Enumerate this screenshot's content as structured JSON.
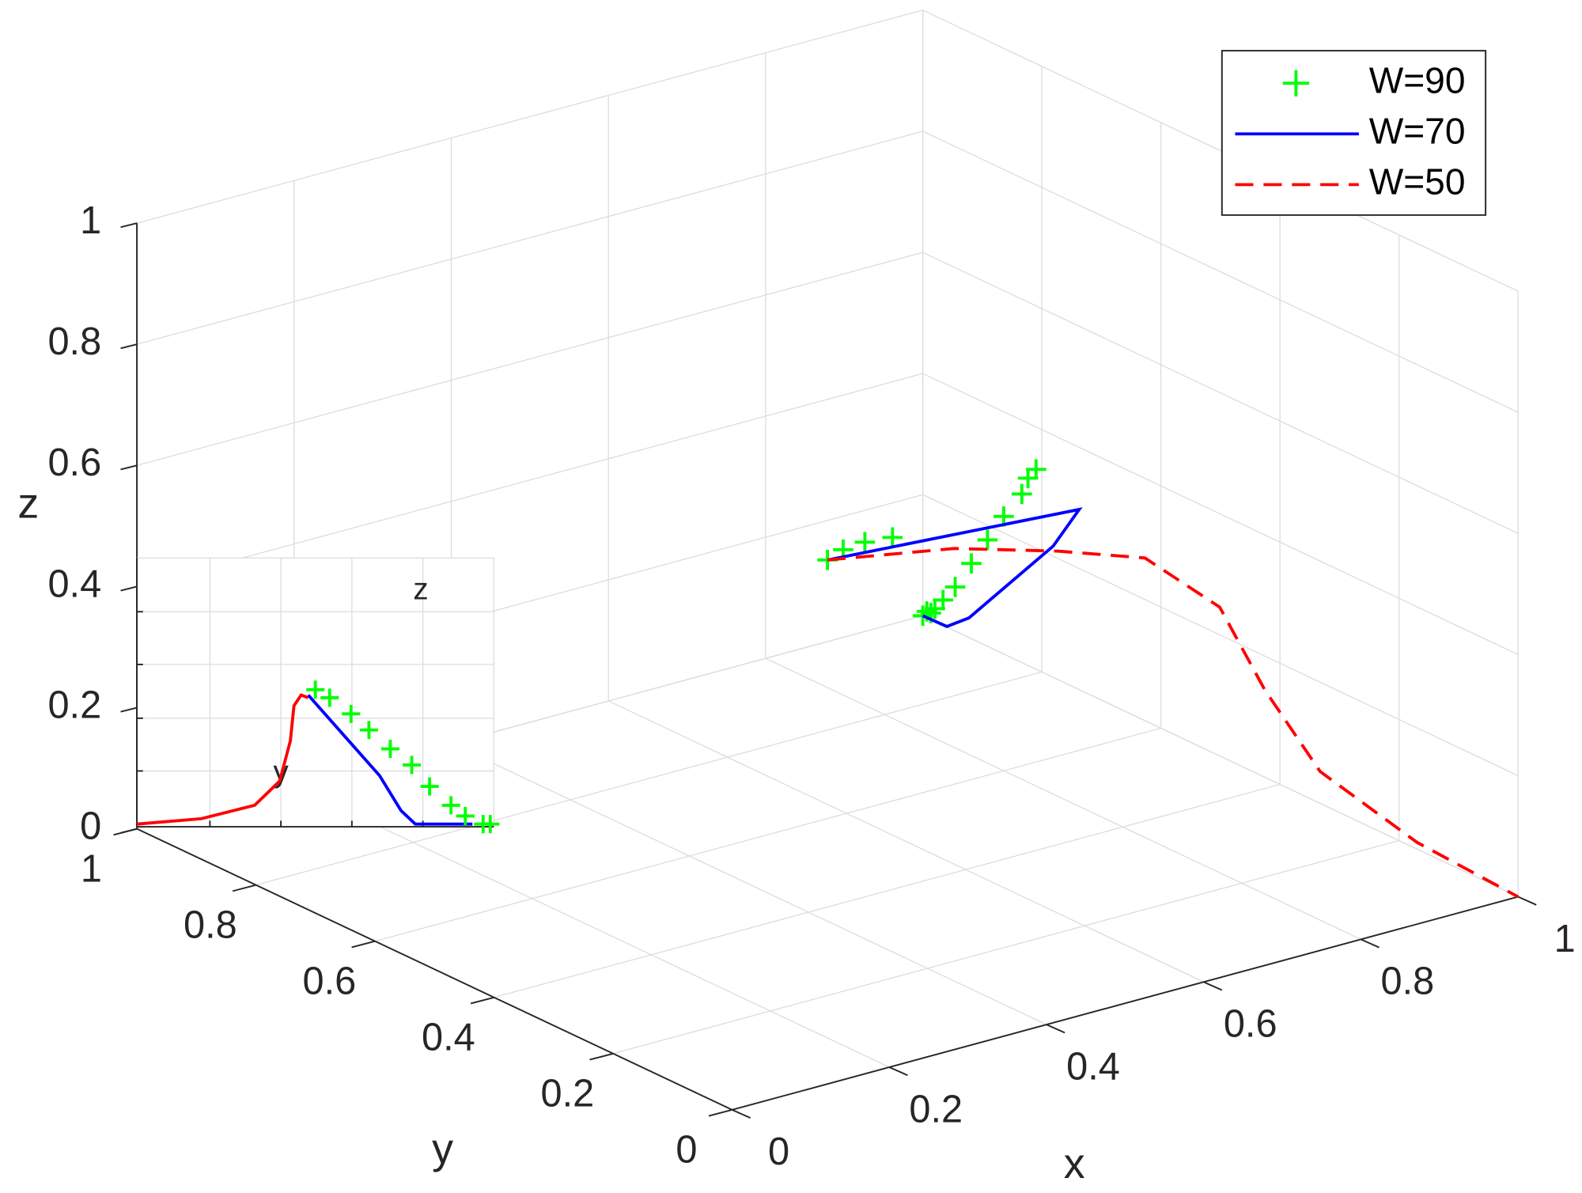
{
  "chart_data": [
    {
      "type": "line3d",
      "xlabel": "x",
      "ylabel": "y",
      "zlabel": "z",
      "xlim": [
        0,
        1
      ],
      "ylim": [
        0,
        1
      ],
      "zlim": [
        0,
        1
      ],
      "xticks": [
        0,
        0.2,
        0.4,
        0.6,
        0.8,
        1
      ],
      "yticks": [
        0,
        0.2,
        0.4,
        0.6,
        0.8,
        1
      ],
      "zticks": [
        0,
        0.2,
        0.4,
        0.6,
        0.8,
        1
      ],
      "grid": true,
      "legend": "upper right",
      "series": [
        {
          "name": "W=90",
          "color": "#00ff00",
          "marker": "+",
          "line": "none",
          "x": [
            0.5,
            0.52,
            0.54,
            0.56,
            0.72,
            0.74,
            0.77,
            0.8,
            0.84,
            0.88,
            0.92,
            0.95,
            0.97,
            0.98,
            0.99,
            1
          ],
          "y": [
            0.5,
            0.5,
            0.49,
            0.47,
            0.44,
            0.48,
            0.53,
            0.6,
            0.68,
            0.76,
            0.84,
            0.9,
            0.94,
            0.96,
            0.98,
            1
          ],
          "z": [
            0.5,
            0.51,
            0.52,
            0.53,
            0.6,
            0.56,
            0.5,
            0.42,
            0.33,
            0.24,
            0.15,
            0.09,
            0.05,
            0.03,
            0.02,
            0
          ]
        },
        {
          "name": "W=70",
          "color": "#0000ff",
          "line": "solid",
          "x": [
            0.5,
            0.79,
            0.81,
            0.93,
            0.97,
            1
          ],
          "y": [
            0.5,
            0.46,
            0.53,
            0.83,
            0.92,
            1
          ],
          "z": [
            0.5,
            0.5,
            0.4,
            0.1,
            0.03,
            0
          ]
        },
        {
          "name": "W=50",
          "color": "#ff0000",
          "line": "dashed",
          "x": [
            0.5,
            0.57,
            0.65,
            0.76,
            0.84,
            0.89,
            0.93,
            0.97,
            1
          ],
          "y": [
            0.5,
            0.38,
            0.31,
            0.31,
            0.29,
            0.28,
            0.24,
            0.13,
            0
          ],
          "z": [
            0.5,
            0.55,
            0.55,
            0.5,
            0.4,
            0.25,
            0.12,
            0.04,
            0
          ]
        }
      ]
    },
    {
      "type": "line",
      "annotations": [
        "z",
        "y"
      ],
      "xlim": [
        0,
        1
      ],
      "ylim": [
        0,
        1
      ],
      "series": [
        {
          "color": "#ff0000",
          "line": "solid",
          "x": [
            0,
            0.18,
            0.33,
            0.4,
            0.43,
            0.44,
            0.46,
            0.48
          ],
          "y": [
            0.01,
            0.03,
            0.08,
            0.17,
            0.32,
            0.45,
            0.49,
            0.48
          ]
        },
        {
          "color": "#0000ff",
          "line": "solid",
          "x": [
            0.48,
            0.58,
            0.68,
            0.74,
            0.78,
            0.94
          ],
          "y": [
            0.49,
            0.34,
            0.19,
            0.06,
            0.01,
            0.01
          ]
        },
        {
          "color": "#00ff00",
          "marker": "+",
          "line": "none",
          "x": [
            0.5,
            0.54,
            0.6,
            0.65,
            0.71,
            0.77,
            0.82,
            0.88,
            0.92,
            0.97,
            0.99
          ],
          "y": [
            0.51,
            0.48,
            0.42,
            0.36,
            0.29,
            0.23,
            0.15,
            0.08,
            0.04,
            0.01,
            0.01
          ]
        }
      ]
    }
  ]
}
